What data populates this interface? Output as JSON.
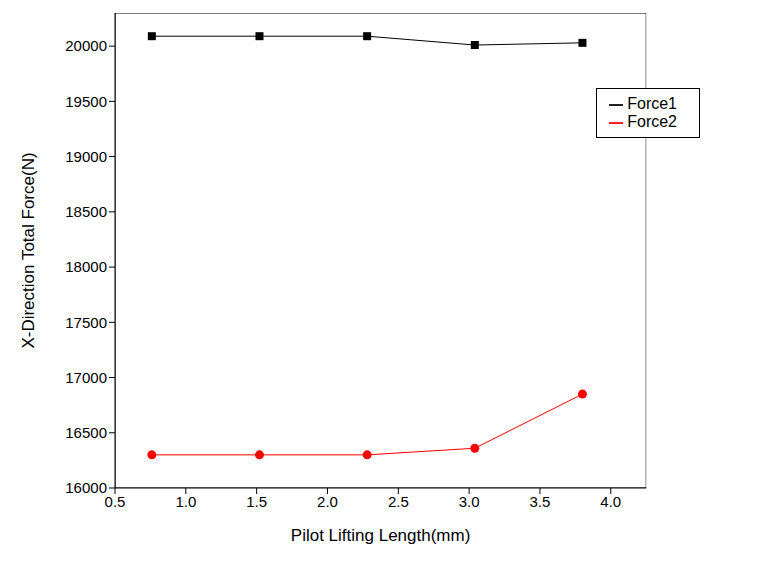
{
  "chart_data": {
    "type": "line",
    "x_label": "Pilot Lifting Length(mm)",
    "y_label": "X-Direction Total Force(N)",
    "x": [
      0.76,
      1.52,
      2.28,
      3.04,
      3.8
    ],
    "series": [
      {
        "name": "Force1",
        "color": "#000000",
        "marker": "square",
        "values": [
          20090,
          20090,
          20090,
          20010,
          20030
        ]
      },
      {
        "name": "Force2",
        "color": "#ff0000",
        "marker": "circle",
        "values": [
          16300,
          16300,
          16300,
          16360,
          16850
        ]
      }
    ],
    "xlim": [
      0.5,
      4.25
    ],
    "xticks": [
      0.5,
      {
        "value": 1,
        "label": "1.0"
      },
      1.5,
      {
        "value": 2,
        "label": "2.0"
      },
      2.5,
      {
        "value": 3,
        "label": "3.0"
      },
      3.5,
      {
        "value": 4,
        "label": "4.0"
      }
    ],
    "ylim": [
      16000,
      20300
    ],
    "yticks": [
      16000,
      16500,
      17000,
      17500,
      18000,
      18500,
      19000,
      19500,
      20000
    ],
    "grid": false,
    "legend": "upper right"
  }
}
